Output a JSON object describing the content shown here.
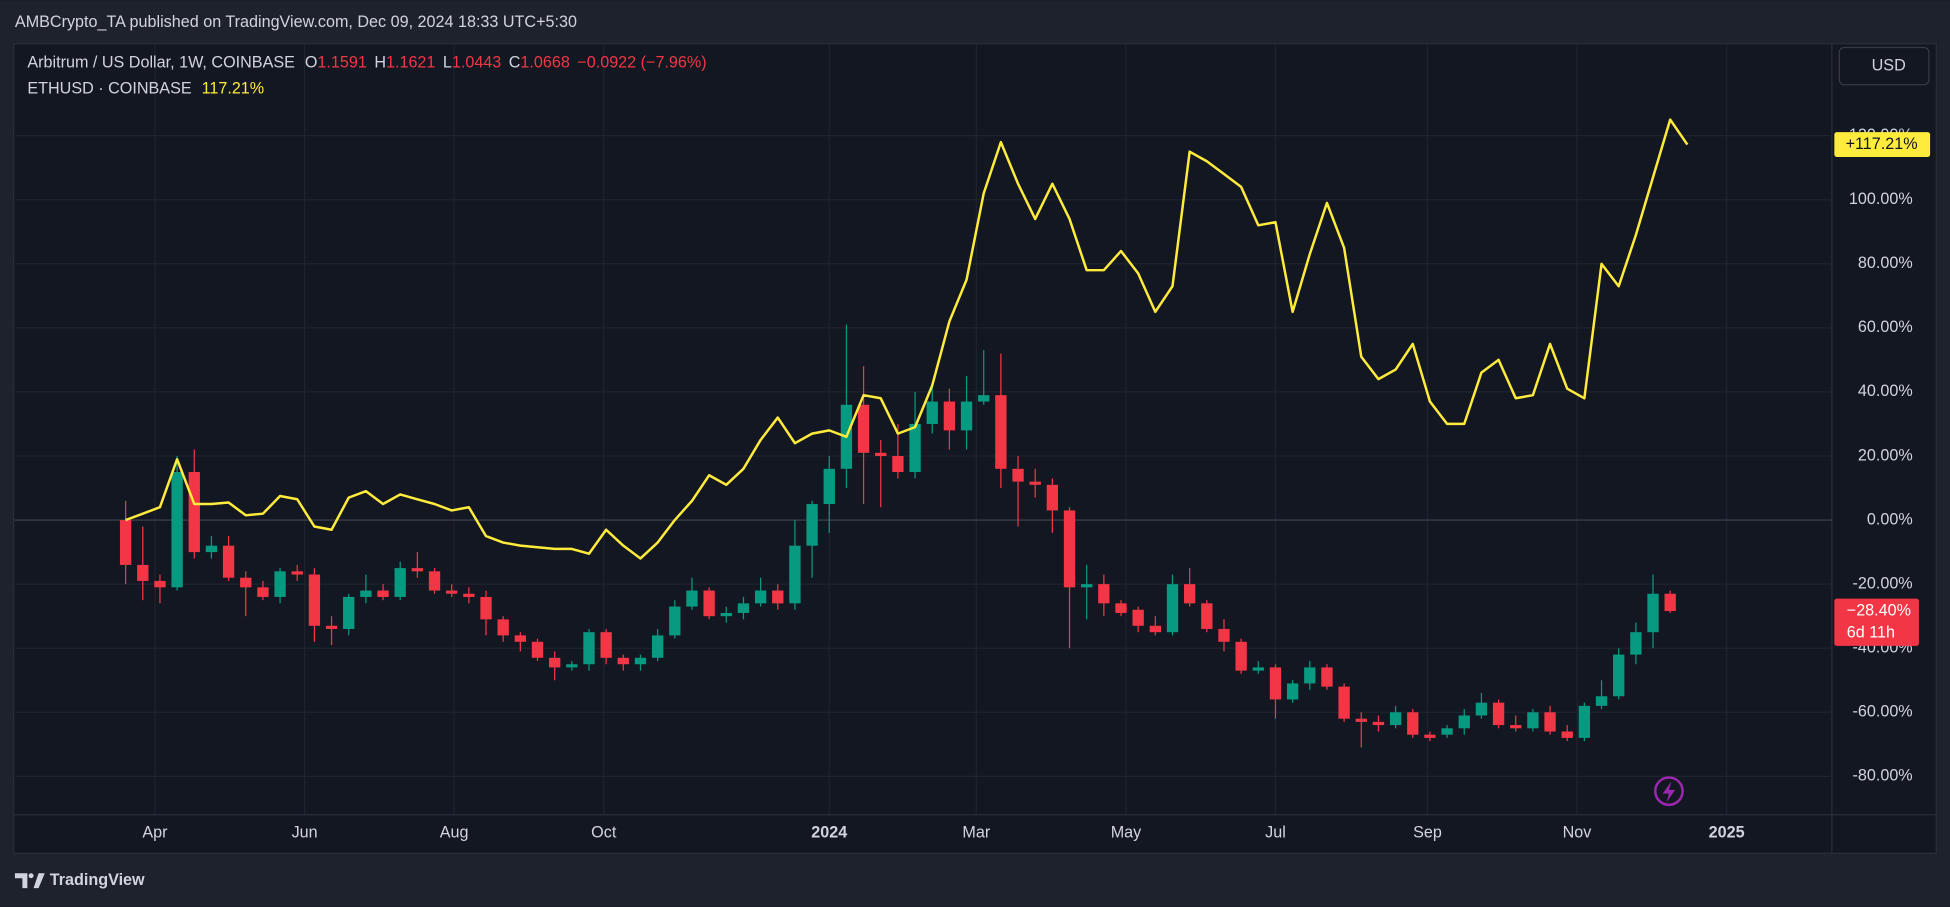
{
  "header": {
    "publisher": "AMBCrypto_TA published on TradingView.com, Dec 09, 2024 18:33 UTC+5:30",
    "brand": "TradingView",
    "currency_button": "USD"
  },
  "legend": {
    "open_label": "O",
    "open": 1.1591,
    "high_label": "H",
    "high": 1.1621,
    "low_label": "L",
    "low": 1.0443,
    "close_label": "C",
    "close": 1.0668,
    "change": "−0.0922 (−7.96%)",
    "compare_change": "117.21%"
  },
  "chart_data": {
    "type": "candlestick",
    "series": [
      {
        "name": "Arbitrum / US Dollar, 1W, COINBASE",
        "type": "candlestick",
        "up_color": "#089981",
        "down_color": "#f23645",
        "open": [
          0,
          -14,
          -19,
          -21,
          15,
          -10,
          -8,
          -18,
          -21,
          -24,
          -16,
          -17,
          -33,
          -34,
          -24,
          -22,
          -24,
          -15,
          -16,
          -22,
          -23,
          -24,
          -31,
          -36,
          -38,
          -43,
          -46,
          -45,
          -35,
          -43,
          -45,
          -43,
          -36,
          -27,
          -22,
          -30,
          -29,
          -26,
          -22,
          -26,
          -8,
          5,
          16,
          36,
          21,
          20,
          15,
          30,
          37,
          28,
          37,
          39,
          16,
          12,
          11,
          3,
          -21,
          -20,
          -26,
          -28,
          -33,
          -35,
          -20,
          -26,
          -34,
          -38,
          -47,
          -46,
          -56,
          -51,
          -46,
          -52,
          -62,
          -63,
          -64,
          -60,
          -67,
          -67,
          -65,
          -61,
          -57,
          -64,
          -65,
          -60,
          -66,
          -68,
          -58,
          -55,
          -42,
          -35,
          -23
        ],
        "high": [
          6,
          -2,
          -17,
          20,
          22,
          -5,
          -5,
          -16,
          -19,
          -15,
          -14,
          -15,
          -30,
          -23,
          -17,
          -20,
          -13,
          -10,
          -15,
          -20,
          -21,
          -22,
          -30,
          -35,
          -37,
          -41,
          -44,
          -34,
          -34,
          -42,
          -42,
          -34,
          -25,
          -18,
          -21,
          -27,
          -24,
          -18,
          -20,
          0,
          6,
          20,
          61,
          48,
          25,
          30,
          40,
          43,
          41,
          45,
          53,
          52,
          20,
          16,
          13,
          4,
          -14,
          -17,
          -25,
          -27,
          -30,
          -17,
          -15,
          -25,
          -31,
          -37,
          -44,
          -45,
          -50,
          -44,
          -45,
          -51,
          -60,
          -61,
          -58,
          -59,
          -66,
          -64,
          -59,
          -54,
          -56,
          -61,
          -59,
          -58,
          -64,
          -57,
          -50,
          -40,
          -32,
          -17,
          -22
        ],
        "low": [
          -20,
          -25,
          -26,
          -22,
          -12,
          -12,
          -19,
          -30,
          -25,
          -26,
          -19,
          -38,
          -39,
          -36,
          -26,
          -25,
          -25,
          -18,
          -23,
          -24,
          -26,
          -36,
          -38,
          -41,
          -44,
          -50,
          -47,
          -47,
          -45,
          -47,
          -47,
          -44,
          -37,
          -28,
          -31,
          -32,
          -31,
          -27,
          -28,
          -28,
          -18,
          -4,
          10,
          5,
          4,
          13,
          13,
          27,
          22,
          22,
          36,
          10,
          -2,
          7,
          -4,
          -40,
          -31,
          -30,
          -30,
          -35,
          -36,
          -36,
          -27,
          -35,
          -41,
          -48,
          -48,
          -62,
          -57,
          -53,
          -53,
          -63,
          -71,
          -66,
          -65,
          -68,
          -69,
          -68,
          -67,
          -62,
          -65,
          -66,
          -66,
          -67,
          -69,
          -69,
          -59,
          -56,
          -45,
          -40,
          -29
        ],
        "close": [
          -14,
          -19,
          -21,
          15,
          -10,
          -8,
          -18,
          -21,
          -24,
          -16,
          -17,
          -33,
          -34,
          -24,
          -22,
          -24,
          -15,
          -16,
          -22,
          -23,
          -24,
          -31,
          -36,
          -38,
          -43,
          -46,
          -45,
          -35,
          -43,
          -45,
          -43,
          -36,
          -27,
          -22,
          -30,
          -29,
          -26,
          -22,
          -26,
          -8,
          5,
          16,
          36,
          21,
          20,
          15,
          30,
          37,
          28,
          37,
          39,
          16,
          12,
          11,
          3,
          -21,
          -20,
          -26,
          -29,
          -33,
          -35,
          -20,
          -26,
          -34,
          -38,
          -47,
          -46,
          -56,
          -51,
          -46,
          -52,
          -62,
          -63,
          -64,
          -60,
          -67,
          -68,
          -65,
          -61,
          -57,
          -64,
          -65,
          -60,
          -66,
          -68,
          -58,
          -55,
          -42,
          -35,
          -23,
          -28.4
        ]
      },
      {
        "name": "ETHUSD · COINBASE",
        "type": "line",
        "color": "#ffeb3b",
        "values": [
          0,
          2,
          4,
          19,
          5,
          5,
          5.5,
          1.5,
          2,
          7.5,
          6.5,
          -2,
          -3,
          7,
          9,
          5,
          8,
          6.5,
          5,
          3,
          4,
          -5,
          -7,
          -8,
          -8.5,
          -9,
          -9,
          -10.5,
          -3,
          -8,
          -12,
          -7,
          0,
          6,
          14,
          11,
          16,
          25,
          32,
          24,
          27,
          28,
          26,
          39,
          38,
          27,
          29,
          42,
          62,
          75,
          102,
          118,
          105,
          94,
          105,
          94,
          78,
          78,
          84,
          77,
          65,
          73,
          115,
          112,
          108,
          104,
          92,
          93,
          65,
          83,
          99,
          85,
          51,
          44,
          47,
          55,
          37,
          30,
          30,
          46,
          50,
          38,
          39,
          55,
          41,
          38,
          80,
          73,
          89,
          107,
          125,
          117.21
        ]
      }
    ],
    "xlim": [
      -6.45,
      99.42
    ],
    "xticks": [
      {
        "value": 1.71,
        "label": "Apr"
      },
      {
        "value": 10.43,
        "label": "Jun"
      },
      {
        "value": 19.14,
        "label": "Aug"
      },
      {
        "value": 27.86,
        "label": "Oct"
      },
      {
        "value": 41.0,
        "label": "2024"
      },
      {
        "value": 49.57,
        "label": "Mar"
      },
      {
        "value": 58.29,
        "label": "May"
      },
      {
        "value": 67.0,
        "label": "Jul"
      },
      {
        "value": 75.86,
        "label": "Sep"
      },
      {
        "value": 84.57,
        "label": "Nov"
      },
      {
        "value": 93.29,
        "label": "2025"
      }
    ],
    "ylim": [
      -92,
      148.7
    ],
    "yticks": [
      {
        "value": -80,
        "label": "-80.00%"
      },
      {
        "value": -60,
        "label": "-60.00%"
      },
      {
        "value": -40,
        "label": "-40.00%"
      },
      {
        "value": -20,
        "label": "-20.00%"
      },
      {
        "value": 0,
        "label": "0.00%"
      },
      {
        "value": 20,
        "label": "20.00%"
      },
      {
        "value": 40,
        "label": "40.00%"
      },
      {
        "value": 60,
        "label": "60.00%"
      },
      {
        "value": 80,
        "label": "80.00%"
      },
      {
        "value": 100,
        "label": "100.00%"
      },
      {
        "value": 120,
        "label": "120.00%"
      }
    ],
    "grid": true,
    "price_tags": {
      "compare": "+117.21%",
      "last": "−28.40%",
      "countdown": "6d 11h"
    }
  }
}
